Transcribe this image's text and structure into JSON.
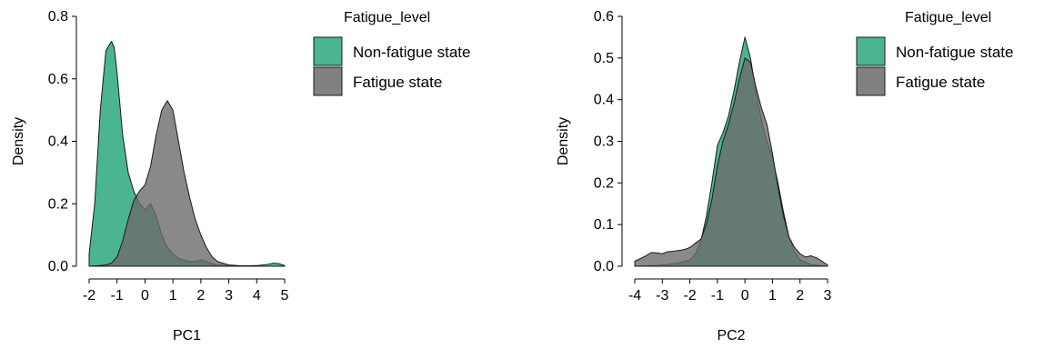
{
  "colors": {
    "non_fatigue": "#41b08a",
    "fatigue": "#6b6b6b"
  },
  "chart_data": [
    {
      "type": "area",
      "xlabel": "PC1",
      "ylabel": "Density",
      "xlim": [
        -2,
        5
      ],
      "ylim": [
        0,
        0.8
      ],
      "xticks": [
        "-2",
        "-1",
        "0",
        "1",
        "2",
        "3",
        "4",
        "5"
      ],
      "yticks": [
        "0.0",
        "0.2",
        "0.4",
        "0.6",
        "0.8"
      ],
      "legend_title": "Fatigue_level",
      "series": [
        {
          "name": "Non-fatigue state",
          "x": [
            -2,
            -1.8,
            -1.6,
            -1.4,
            -1.2,
            -1.1,
            -1.0,
            -0.8,
            -0.6,
            -0.4,
            -0.2,
            0.0,
            0.2,
            0.4,
            0.6,
            0.8,
            1.0,
            1.2,
            1.4,
            1.6,
            1.8,
            2.0,
            2.2,
            2.4,
            2.6,
            3.0,
            3.5,
            4.0,
            4.4,
            4.6,
            4.8,
            5.0
          ],
          "values": [
            0.04,
            0.2,
            0.5,
            0.69,
            0.72,
            0.7,
            0.62,
            0.42,
            0.3,
            0.24,
            0.2,
            0.18,
            0.2,
            0.16,
            0.1,
            0.06,
            0.04,
            0.025,
            0.02,
            0.015,
            0.015,
            0.02,
            0.015,
            0.008,
            0.004,
            0.002,
            0.001,
            0.002,
            0.006,
            0.01,
            0.008,
            0.002
          ]
        },
        {
          "name": "Fatigue state",
          "x": [
            -2,
            -1.8,
            -1.6,
            -1.4,
            -1.2,
            -1.0,
            -0.8,
            -0.6,
            -0.4,
            -0.2,
            0.0,
            0.2,
            0.4,
            0.6,
            0.8,
            1.0,
            1.2,
            1.4,
            1.6,
            1.8,
            2.0,
            2.2,
            2.4,
            2.6,
            3.0,
            3.5,
            4.0,
            4.5,
            5.0
          ],
          "values": [
            0.0,
            0.001,
            0.002,
            0.004,
            0.01,
            0.03,
            0.08,
            0.15,
            0.21,
            0.24,
            0.26,
            0.32,
            0.42,
            0.5,
            0.53,
            0.5,
            0.4,
            0.3,
            0.22,
            0.15,
            0.1,
            0.06,
            0.03,
            0.015,
            0.004,
            0.001,
            0.0,
            0.0,
            0.0
          ]
        }
      ]
    },
    {
      "type": "area",
      "xlabel": "PC2",
      "ylabel": "Density",
      "xlim": [
        -4,
        3
      ],
      "ylim": [
        0,
        0.6
      ],
      "xticks": [
        "-4",
        "-3",
        "-2",
        "-1",
        "0",
        "1",
        "2",
        "3"
      ],
      "yticks": [
        "0.0",
        "0.1",
        "0.2",
        "0.3",
        "0.4",
        "0.5",
        "0.6"
      ],
      "legend_title": "Fatigue_level",
      "series": [
        {
          "name": "Non-fatigue state",
          "x": [
            -4,
            -3.6,
            -3.2,
            -2.8,
            -2.4,
            -2.0,
            -1.8,
            -1.6,
            -1.4,
            -1.2,
            -1.0,
            -0.8,
            -0.6,
            -0.4,
            -0.2,
            0.0,
            0.2,
            0.4,
            0.6,
            0.8,
            1.0,
            1.2,
            1.4,
            1.6,
            1.8,
            2.0,
            2.4,
            2.8,
            3.0
          ],
          "values": [
            0.0,
            0.001,
            0.002,
            0.004,
            0.008,
            0.015,
            0.03,
            0.06,
            0.12,
            0.2,
            0.29,
            0.32,
            0.36,
            0.42,
            0.49,
            0.55,
            0.5,
            0.42,
            0.35,
            0.3,
            0.26,
            0.2,
            0.13,
            0.07,
            0.035,
            0.015,
            0.004,
            0.001,
            0.0
          ]
        },
        {
          "name": "Fatigue state",
          "x": [
            -4,
            -3.8,
            -3.6,
            -3.4,
            -3.2,
            -3.0,
            -2.8,
            -2.6,
            -2.4,
            -2.2,
            -2.0,
            -1.8,
            -1.6,
            -1.4,
            -1.2,
            -1.0,
            -0.8,
            -0.6,
            -0.4,
            -0.2,
            0.0,
            0.2,
            0.4,
            0.6,
            0.8,
            1.0,
            1.2,
            1.4,
            1.6,
            1.8,
            2.0,
            2.2,
            2.4,
            2.6,
            2.8,
            3.0
          ],
          "values": [
            0.012,
            0.018,
            0.025,
            0.033,
            0.032,
            0.03,
            0.035,
            0.036,
            0.038,
            0.04,
            0.045,
            0.055,
            0.065,
            0.1,
            0.16,
            0.24,
            0.3,
            0.34,
            0.39,
            0.45,
            0.5,
            0.49,
            0.43,
            0.38,
            0.34,
            0.27,
            0.19,
            0.12,
            0.07,
            0.045,
            0.03,
            0.022,
            0.025,
            0.02,
            0.012,
            0.003
          ]
        }
      ]
    }
  ]
}
